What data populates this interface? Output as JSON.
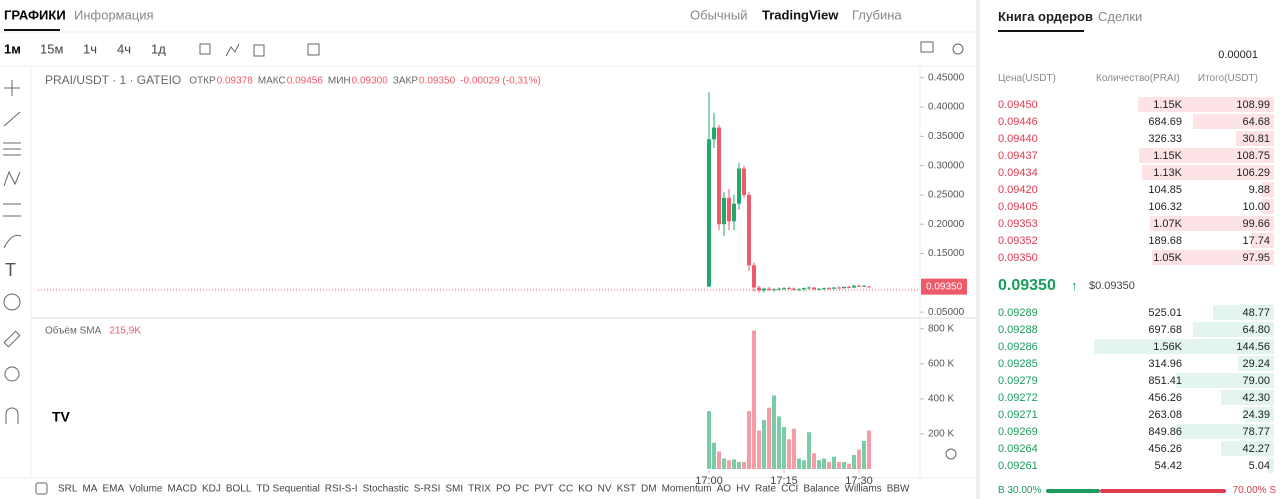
{
  "tabs": {
    "charts": "ГРАФИКИ",
    "info": "Информация"
  },
  "views": [
    "Обычный",
    "TradingView",
    "Глубина"
  ],
  "intervals": [
    "1м",
    "15м",
    "1ч",
    "4ч",
    "1д"
  ],
  "chart_data": {
    "type": "candlestick",
    "title": "PRAI/USDT · 1 · GATEIO",
    "legend": [
      [
        "ОТКР",
        "0.09378"
      ],
      [
        "МАКС",
        "0.09456"
      ],
      [
        "МИН",
        "0.09300"
      ],
      [
        "ЗАКР",
        "0.09350"
      ]
    ],
    "change": "-0.00029 (-0,31%)",
    "open": [
      0.0935,
      0.345,
      0.365,
      0.2,
      0.245,
      0.205,
      0.235,
      0.295,
      0.25,
      0.13,
      0.092,
      0.087,
      0.09,
      0.088,
      0.089,
      0.09,
      0.091,
      0.09,
      0.088,
      0.089,
      0.091,
      0.092,
      0.089,
      0.09,
      0.091,
      0.09,
      0.092,
      0.091,
      0.093,
      0.092,
      0.095,
      0.094,
      0.09378
    ],
    "high": [
      0.425,
      0.39,
      0.37,
      0.255,
      0.26,
      0.25,
      0.305,
      0.3,
      0.255,
      0.135,
      0.095,
      0.092,
      0.093,
      0.091,
      0.092,
      0.093,
      0.094,
      0.092,
      0.091,
      0.092,
      0.094,
      0.093,
      0.091,
      0.092,
      0.093,
      0.093,
      0.094,
      0.094,
      0.095,
      0.096,
      0.097,
      0.096,
      0.09456
    ],
    "low": [
      0.0935,
      0.33,
      0.19,
      0.18,
      0.19,
      0.19,
      0.225,
      0.245,
      0.12,
      0.085,
      0.083,
      0.084,
      0.086,
      0.085,
      0.087,
      0.088,
      0.089,
      0.087,
      0.086,
      0.087,
      0.089,
      0.088,
      0.087,
      0.088,
      0.089,
      0.089,
      0.09,
      0.09,
      0.091,
      0.091,
      0.093,
      0.093,
      0.093
    ],
    "close": [
      0.345,
      0.365,
      0.2,
      0.245,
      0.205,
      0.235,
      0.295,
      0.25,
      0.13,
      0.092,
      0.087,
      0.09,
      0.088,
      0.089,
      0.09,
      0.091,
      0.09,
      0.088,
      0.089,
      0.091,
      0.092,
      0.089,
      0.09,
      0.091,
      0.09,
      0.092,
      0.091,
      0.093,
      0.092,
      0.095,
      0.094,
      0.095,
      0.0935
    ],
    "volume": [
      330000,
      150000,
      100000,
      60000,
      50000,
      55000,
      40000,
      40000,
      330000,
      790000,
      220000,
      280000,
      350000,
      420000,
      300000,
      240000,
      170000,
      230000,
      60000,
      50000,
      210000,
      90000,
      50000,
      60000,
      40000,
      70000,
      40000,
      40000,
      30000,
      80000,
      110000,
      160000,
      220000
    ],
    "colors": {
      "up": "#21a96b",
      "down": "#ee5a6a"
    },
    "ylim": [
      0.04,
      0.47
    ],
    "yticks": [
      {
        "value": 0.45,
        "label": "0.45000"
      },
      {
        "value": 0.4,
        "label": "0.40000"
      },
      {
        "value": 0.35,
        "label": "0.35000"
      },
      {
        "value": 0.3,
        "label": "0.30000"
      },
      {
        "value": 0.25,
        "label": "0.25000"
      },
      {
        "value": 0.2,
        "label": "0.20000"
      },
      {
        "value": 0.15,
        "label": "0.15000"
      },
      {
        "value": 0.05,
        "label": "0.05000"
      }
    ],
    "last_price": {
      "value": 0.0935,
      "label": "0.09350"
    },
    "volume_title": "Объём SMA",
    "volume_sma": "215,9K",
    "vlim": [
      0,
      850000
    ],
    "vticks": [
      {
        "value": 800000,
        "label": "800 K"
      },
      {
        "value": 600000,
        "label": "600 K"
      },
      {
        "value": 400000,
        "label": "400 K"
      },
      {
        "value": 200000,
        "label": "200 K"
      }
    ],
    "xticks": [
      {
        "value": 0,
        "label": "17:00"
      },
      {
        "value": 15,
        "label": "17:15"
      },
      {
        "value": 30,
        "label": "17:30"
      }
    ]
  },
  "indicators": [
    "SRL",
    "MA",
    "EMA",
    "Volume",
    "MACD",
    "KDJ",
    "BOLL",
    "TD Sequential",
    "RSI-S-I",
    "Stochastic",
    "S-RSI",
    "SMI",
    "TRIX",
    "PO",
    "PC",
    "PVT",
    "CC",
    "KO",
    "NV",
    "KST",
    "DM",
    "Momentum",
    "AO",
    "HV",
    "Rate",
    "CCI",
    "Balance",
    "Williams",
    "BBW"
  ],
  "orderbook": {
    "tabs": [
      "Книга ордеров",
      "Сделки"
    ],
    "step": "0.00001",
    "headers": [
      "Цена(USDT)",
      "Количество(PRAI)",
      "Итого(USDT)"
    ],
    "asks": [
      [
        "0.09450",
        "1.15K",
        "108.99"
      ],
      [
        "0.09446",
        "684.69",
        "64.68"
      ],
      [
        "0.09440",
        "326.33",
        "30.81"
      ],
      [
        "0.09437",
        "1.15K",
        "108.75"
      ],
      [
        "0.09434",
        "1.13K",
        "106.29"
      ],
      [
        "0.09420",
        "104.85",
        "9.88"
      ],
      [
        "0.09405",
        "106.32",
        "10.00"
      ],
      [
        "0.09353",
        "1.07K",
        "99.66"
      ],
      [
        "0.09352",
        "189.68",
        "17.74"
      ],
      [
        "0.09350",
        "1.05K",
        "97.95"
      ]
    ],
    "last": "0.09350",
    "last_usd": "$0.09350",
    "bids": [
      [
        "0.09289",
        "525.01",
        "48.77"
      ],
      [
        "0.09288",
        "697.68",
        "64.80"
      ],
      [
        "0.09286",
        "1.56K",
        "144.56"
      ],
      [
        "0.09285",
        "314.96",
        "29.24"
      ],
      [
        "0.09279",
        "851.41",
        "79.00"
      ],
      [
        "0.09272",
        "456.26",
        "42.30"
      ],
      [
        "0.09271",
        "263.08",
        "24.39"
      ],
      [
        "0.09269",
        "849.86",
        "78.77"
      ],
      [
        "0.09264",
        "456.26",
        "42.27"
      ],
      [
        "0.09261",
        "54.42",
        "5.04"
      ]
    ],
    "buy_ratio": "B 30.00%",
    "sell_ratio": "70.00% S"
  }
}
